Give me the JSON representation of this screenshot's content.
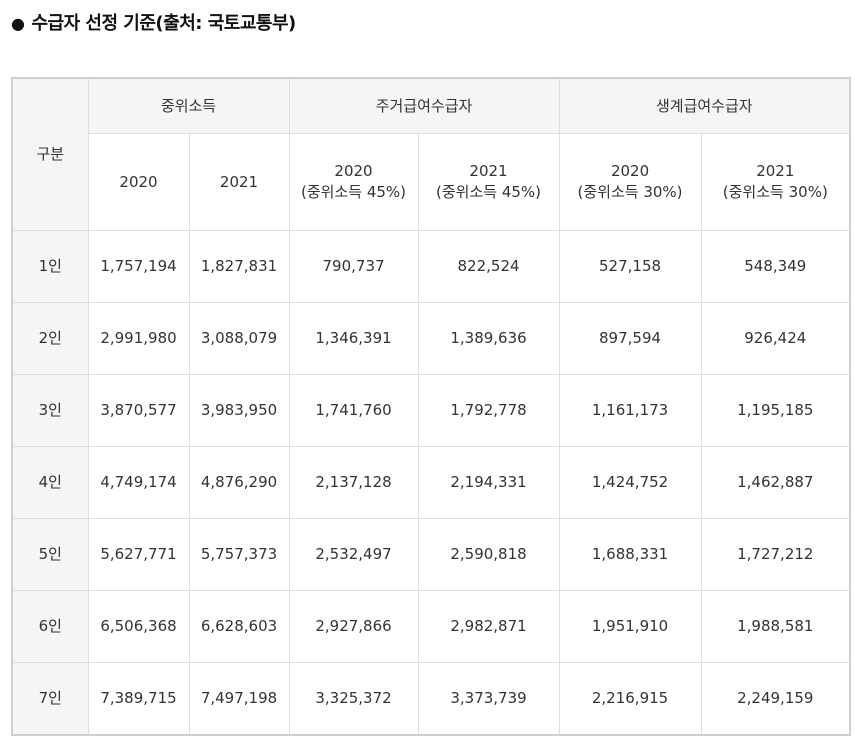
{
  "title": {
    "bullet": "●",
    "text": "수급자 선정 기준(출처: 국토교통부)"
  },
  "table": {
    "row_header": "구분",
    "groups": [
      "중위소득",
      "주거급여수급자",
      "생계급여수급자"
    ],
    "sub_headers": [
      "2020",
      "2021",
      "2020\n(중위소득 45%)",
      "2021\n(중위소득 45%)",
      "2020\n(중위소득 30%)",
      "2021\n(중위소득 30%)"
    ],
    "rows": [
      {
        "label": "1인",
        "values": [
          "1,757,194",
          "1,827,831",
          "790,737",
          "822,524",
          "527,158",
          "548,349"
        ]
      },
      {
        "label": "2인",
        "values": [
          "2,991,980",
          "3,088,079",
          "1,346,391",
          "1,389,636",
          "897,594",
          "926,424"
        ]
      },
      {
        "label": "3인",
        "values": [
          "3,870,577",
          "3,983,950",
          "1,741,760",
          "1,792,778",
          "1,161,173",
          "1,195,185"
        ]
      },
      {
        "label": "4인",
        "values": [
          "4,749,174",
          "4,876,290",
          "2,137,128",
          "2,194,331",
          "1,424,752",
          "1,462,887"
        ]
      },
      {
        "label": "5인",
        "values": [
          "5,627,771",
          "5,757,373",
          "2,532,497",
          "2,590,818",
          "1,688,331",
          "1,727,212"
        ]
      },
      {
        "label": "6인",
        "values": [
          "6,506,368",
          "6,628,603",
          "2,927,866",
          "2,982,871",
          "1,951,910",
          "1,988,581"
        ]
      },
      {
        "label": "7인",
        "values": [
          "7,389,715",
          "7,497,198",
          "3,325,372",
          "3,373,739",
          "2,216,915",
          "2,249,159"
        ]
      }
    ]
  }
}
